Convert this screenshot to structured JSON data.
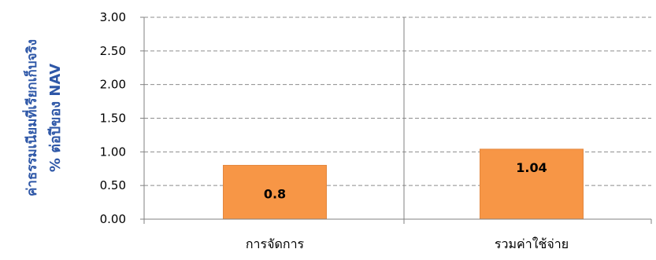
{
  "chart_data": {
    "type": "bar",
    "categories": [
      "การจัดการ",
      "รวมค่าใช้จ่าย"
    ],
    "values": [
      0.8,
      1.04
    ],
    "data_labels": [
      "0.8",
      "1.04"
    ],
    "ylabel_line1": "ค่าธรรมเนียมที่เรียกเก็บจริง",
    "ylabel_line2": "% ต่อปีของ NAV",
    "xlabel": "",
    "title": "",
    "ylim": [
      0,
      3
    ],
    "yticks": [
      "0.00",
      "0.50",
      "1.00",
      "1.50",
      "2.00",
      "2.50",
      "3.00"
    ],
    "ytick_values": [
      0,
      0.5,
      1,
      1.5,
      2,
      2.5,
      3
    ],
    "grid": true,
    "grid_style": "dashed",
    "legend": "none",
    "colors": {
      "bar": "#F79646",
      "bar_stroke": "#E3873E",
      "grid": "#8C8C8C",
      "axis": "#808080",
      "ylabel": "#2E57A7",
      "text": "#000000"
    }
  }
}
